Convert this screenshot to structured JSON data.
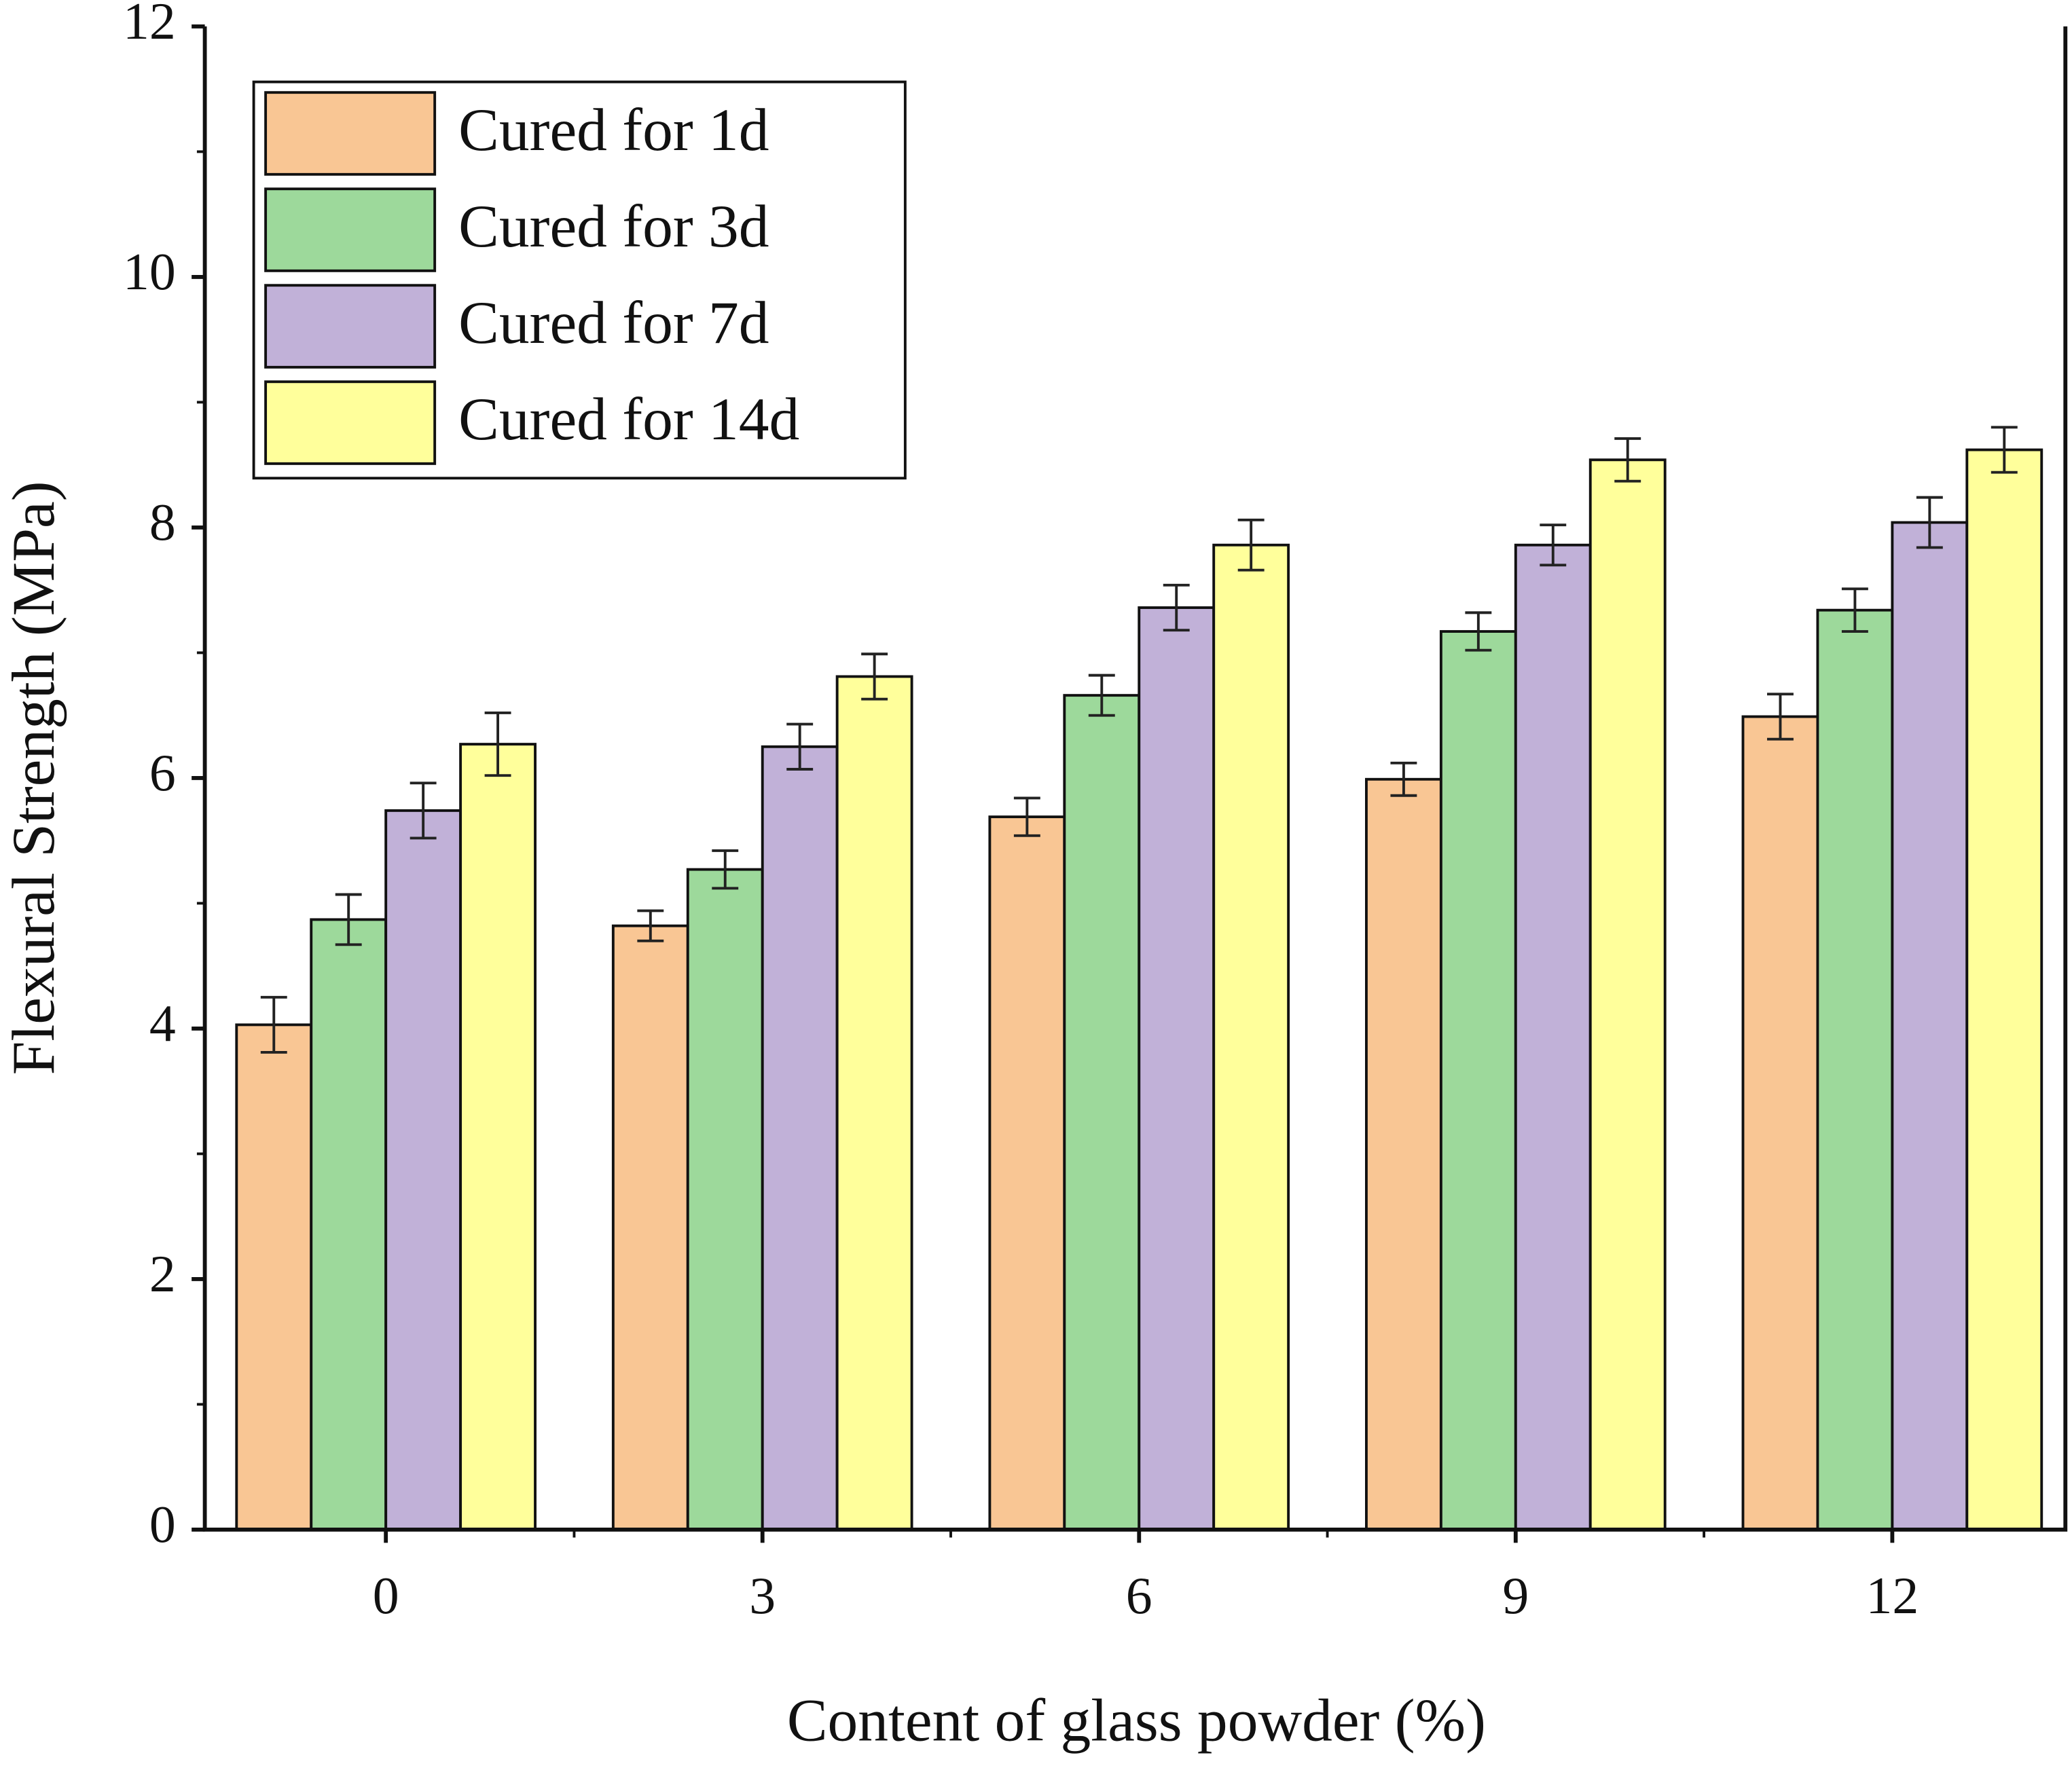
{
  "chart_data": {
    "type": "bar",
    "x_label": "Content of glass powder (%)",
    "y_label": "Flexural Strength (MPa)",
    "categories": [
      "0",
      "3",
      "6",
      "9",
      "12"
    ],
    "series": [
      {
        "name": "Cured for 1d",
        "color": "#f9c694",
        "values": [
          4.03,
          4.82,
          5.69,
          5.99,
          6.49
        ],
        "errors": [
          0.22,
          0.12,
          0.15,
          0.13,
          0.18
        ]
      },
      {
        "name": "Cured for 3d",
        "color": "#9dd99b",
        "values": [
          4.87,
          5.27,
          6.66,
          7.17,
          7.34
        ],
        "errors": [
          0.2,
          0.15,
          0.16,
          0.15,
          0.17
        ]
      },
      {
        "name": "Cured for 7d",
        "color": "#c1b1d8",
        "values": [
          5.74,
          6.25,
          7.36,
          7.86,
          8.04
        ],
        "errors": [
          0.22,
          0.18,
          0.18,
          0.16,
          0.2
        ]
      },
      {
        "name": "Cured for 14d",
        "color": "#ffff9b",
        "values": [
          6.27,
          6.81,
          7.86,
          8.54,
          8.62
        ],
        "errors": [
          0.25,
          0.18,
          0.2,
          0.17,
          0.18
        ]
      }
    ],
    "ylim": [
      0,
      12
    ],
    "yticks": [
      0,
      2,
      4,
      6,
      8,
      10,
      12
    ],
    "legend": "upper left",
    "grid": false
  }
}
